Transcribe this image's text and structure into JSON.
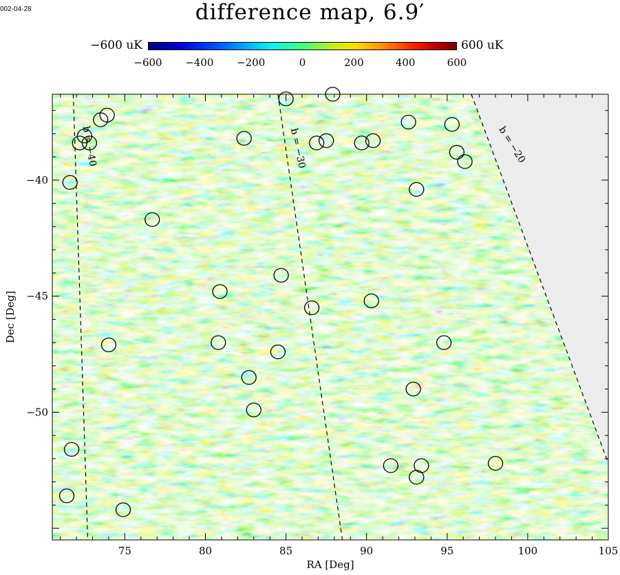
{
  "date_label": "002-04-28",
  "chart_data": {
    "type": "heatmap",
    "title": "difference map, 6.9′",
    "xlabel": "RA [Deg]",
    "ylabel": "Dec [Deg]",
    "xlim": [
      70.5,
      105
    ],
    "ylim": [
      -55.5,
      -36.3
    ],
    "xticks": [
      75,
      80,
      85,
      90,
      95,
      100,
      105
    ],
    "yticks": [
      -40,
      -45,
      -50
    ],
    "colorbar": {
      "min_label": "−600 uK",
      "max_label": "600 uK",
      "range": [
        -600,
        600
      ],
      "ticks": [
        "−600",
        "−400",
        "−200",
        "0",
        "200",
        "400",
        "600"
      ]
    },
    "contours": [
      {
        "label": "b = −40",
        "ra": [
          71.8,
          72.7
        ],
        "dec": [
          -36.3,
          -55.5
        ]
      },
      {
        "label": "b = −30",
        "ra": [
          84.5,
          88.5
        ],
        "dec": [
          -36.3,
          -55.5
        ]
      },
      {
        "label": "b = −20",
        "ra": [
          96.5,
          105
        ],
        "dec": [
          -36.3,
          -52.2
        ]
      }
    ],
    "sources": [
      {
        "ra": 73.5,
        "dec": -37.4
      },
      {
        "ra": 73.9,
        "dec": -37.2
      },
      {
        "ra": 72.2,
        "dec": -38.4
      },
      {
        "ra": 72.5,
        "dec": -38.1
      },
      {
        "ra": 72.8,
        "dec": -38.4
      },
      {
        "ra": 71.6,
        "dec": -40.1
      },
      {
        "ra": 76.7,
        "dec": -41.7
      },
      {
        "ra": 82.4,
        "dec": -38.2
      },
      {
        "ra": 85.0,
        "dec": -36.5
      },
      {
        "ra": 87.9,
        "dec": -36.3
      },
      {
        "ra": 86.9,
        "dec": -38.4
      },
      {
        "ra": 87.5,
        "dec": -38.3
      },
      {
        "ra": 89.7,
        "dec": -38.4
      },
      {
        "ra": 90.4,
        "dec": -38.3
      },
      {
        "ra": 92.6,
        "dec": -37.5
      },
      {
        "ra": 95.3,
        "dec": -37.6
      },
      {
        "ra": 95.6,
        "dec": -38.8
      },
      {
        "ra": 96.1,
        "dec": -39.2
      },
      {
        "ra": 93.1,
        "dec": -40.4
      },
      {
        "ra": 84.7,
        "dec": -44.1
      },
      {
        "ra": 80.9,
        "dec": -44.8
      },
      {
        "ra": 86.6,
        "dec": -45.5
      },
      {
        "ra": 90.3,
        "dec": -45.2
      },
      {
        "ra": 74.0,
        "dec": -47.1
      },
      {
        "ra": 80.8,
        "dec": -47.0
      },
      {
        "ra": 84.5,
        "dec": -47.4
      },
      {
        "ra": 94.8,
        "dec": -47.0
      },
      {
        "ra": 82.7,
        "dec": -48.5
      },
      {
        "ra": 92.9,
        "dec": -49.0
      },
      {
        "ra": 83.0,
        "dec": -49.9
      },
      {
        "ra": 71.7,
        "dec": -51.6
      },
      {
        "ra": 91.5,
        "dec": -52.3
      },
      {
        "ra": 93.4,
        "dec": -52.3
      },
      {
        "ra": 93.1,
        "dec": -52.8
      },
      {
        "ra": 98.0,
        "dec": -52.2
      },
      {
        "ra": 71.4,
        "dec": -53.6
      },
      {
        "ra": 74.9,
        "dec": -54.2
      }
    ]
  }
}
